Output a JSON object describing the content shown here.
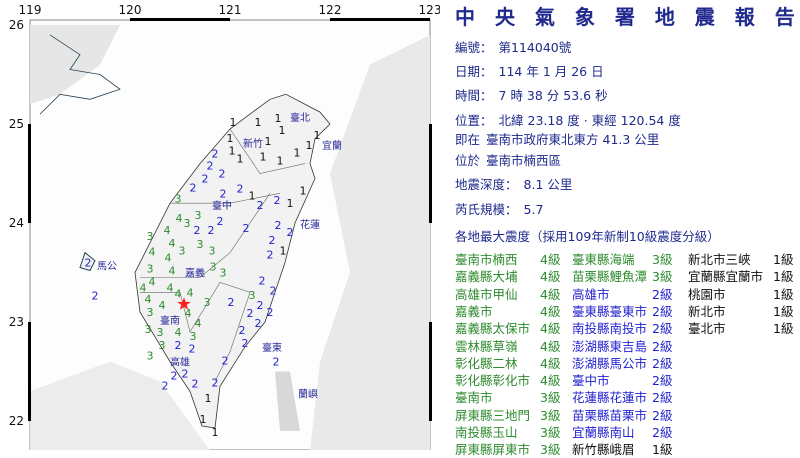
{
  "report": {
    "title": "中 央 氣 象 署 地 震 報 告",
    "number_label": "編號：",
    "number": "第114040號",
    "date_label": "日期：",
    "date": "114 年 1 月 26 日",
    "time_label": "時間：",
    "time": "7 時 38 分 53.6 秒",
    "location_label": "位置：",
    "location": "北緯 23.18 度 · 東經 120.54 度",
    "relative_label": "即在",
    "relative": "臺南市政府東北東方 41.3 公里",
    "district_label": "位於",
    "district": "臺南市楠西區",
    "depth_label": "地震深度：",
    "depth": "8.1 公里",
    "magnitude_label": "芮氏規模：",
    "magnitude": "5.7",
    "intensity_heading": "各地最大震度（採用109年新制10級震度分級）"
  },
  "intensity_colors": {
    "4": "#2e8b2e",
    "3": "#2e8b2e",
    "2": "#2323d0",
    "1": "#111111"
  },
  "intensity_table": [
    [
      [
        "臺南市楠西",
        "4級"
      ],
      [
        "臺東縣海端",
        "3級"
      ],
      [
        "新北市三峽",
        "1級"
      ]
    ],
    [
      [
        "嘉義縣大埔",
        "4級"
      ],
      [
        "苗栗縣鯉魚潭",
        "3級"
      ],
      [
        "宜蘭縣宜蘭市",
        "1級"
      ]
    ],
    [
      [
        "高雄市甲仙",
        "4級"
      ],
      [
        "高雄市",
        "2級"
      ],
      [
        "桃園市",
        "1級"
      ]
    ],
    [
      [
        "嘉義市",
        "4級"
      ],
      [
        "臺東縣臺東市",
        "2級"
      ],
      [
        "新北市",
        "1級"
      ]
    ],
    [
      [
        "嘉義縣太保市",
        "4級"
      ],
      [
        "南投縣南投市",
        "2級"
      ],
      [
        "臺北市",
        "1級"
      ]
    ],
    [
      [
        "雲林縣草嶺",
        "4級"
      ],
      [
        "澎湖縣東吉島",
        "2級"
      ]
    ],
    [
      [
        "彰化縣二林",
        "4級"
      ],
      [
        "澎湖縣馬公市",
        "2級"
      ]
    ],
    [
      [
        "彰化縣彰化市",
        "4級"
      ],
      [
        "臺中市",
        "2級"
      ]
    ],
    [
      [
        "臺南市",
        "3級"
      ],
      [
        "花蓮縣花蓮市",
        "2級"
      ]
    ],
    [
      [
        "屏東縣三地門",
        "3級"
      ],
      [
        "苗栗縣苗栗市",
        "2級"
      ]
    ],
    [
      [
        "南投縣玉山",
        "3級"
      ],
      [
        "宜蘭縣南山",
        "2級"
      ]
    ],
    [
      [
        "屏東縣屏東市",
        "3級"
      ],
      [
        "新竹縣峨眉",
        "1級"
      ]
    ]
  ],
  "map": {
    "lon_ticks": [
      "119",
      "120",
      "121",
      "122",
      "123"
    ],
    "lat_ticks": [
      "26",
      "25",
      "24",
      "23",
      "22"
    ],
    "lon_range": [
      119,
      123
    ],
    "lat_range": [
      21.7,
      26
    ],
    "epicenter": {
      "lon": 120.54,
      "lat": 23.18,
      "color": "#ff2020",
      "icon": "star-icon"
    },
    "cities": [
      {
        "name": "臺北",
        "lon": 121.6,
        "lat": 25.07
      },
      {
        "name": "新竹",
        "lon": 121.13,
        "lat": 24.81
      },
      {
        "name": "宜蘭",
        "lon": 121.92,
        "lat": 24.79
      },
      {
        "name": "臺中",
        "lon": 120.82,
        "lat": 24.18
      },
      {
        "name": "花蓮",
        "lon": 121.7,
        "lat": 23.99
      },
      {
        "name": "馬公",
        "lon": 119.67,
        "lat": 23.57
      },
      {
        "name": "嘉義",
        "lon": 120.55,
        "lat": 23.5
      },
      {
        "name": "臺南",
        "lon": 120.3,
        "lat": 23.02
      },
      {
        "name": "高雄",
        "lon": 120.4,
        "lat": 22.6
      },
      {
        "name": "臺東",
        "lon": 121.32,
        "lat": 22.75
      },
      {
        "name": "蘭嶼",
        "lon": 121.68,
        "lat": 22.28
      }
    ],
    "stations": [
      [
        121.03,
        25.02,
        1
      ],
      [
        121.28,
        25.02,
        1
      ],
      [
        121.48,
        25.06,
        1
      ],
      [
        121.52,
        25.0,
        1
      ],
      [
        121.28,
        24.91,
        1
      ],
      [
        121.0,
        24.86,
        1
      ],
      [
        121.02,
        24.73,
        1
      ],
      [
        121.1,
        24.65,
        1
      ],
      [
        121.33,
        24.67,
        1
      ],
      [
        121.5,
        24.63,
        1
      ],
      [
        121.67,
        24.71,
        1
      ],
      [
        121.74,
        24.79,
        1
      ],
      [
        121.82,
        24.89,
        1
      ],
      [
        121.73,
        24.33,
        1
      ],
      [
        121.6,
        24.2,
        1
      ],
      [
        121.22,
        24.28,
        1
      ],
      [
        121.53,
        23.72,
        1
      ],
      [
        120.78,
        22.23,
        1
      ],
      [
        120.73,
        22.02,
        1
      ],
      [
        120.85,
        21.89,
        1
      ],
      [
        120.85,
        24.7,
        2
      ],
      [
        120.8,
        24.58,
        2
      ],
      [
        120.92,
        24.5,
        2
      ],
      [
        120.75,
        24.45,
        2
      ],
      [
        120.63,
        24.36,
        2
      ],
      [
        120.93,
        24.3,
        2
      ],
      [
        121.15,
        24.35,
        2
      ],
      [
        121.47,
        24.23,
        2
      ],
      [
        121.25,
        24.18,
        2
      ],
      [
        120.9,
        24.08,
        2
      ],
      [
        121.16,
        23.95,
        2
      ],
      [
        120.67,
        23.93,
        2
      ],
      [
        120.86,
        23.93,
        2
      ],
      [
        121.48,
        23.98,
        2
      ],
      [
        121.6,
        23.91,
        2
      ],
      [
        121.42,
        23.83,
        2
      ],
      [
        121.4,
        23.68,
        2
      ],
      [
        121.32,
        23.42,
        2
      ],
      [
        121.3,
        23.17,
        2
      ],
      [
        121.43,
        23.32,
        2
      ],
      [
        121.01,
        23.2,
        2
      ],
      [
        121.2,
        23.09,
        2
      ],
      [
        121.35,
        23.1,
        2
      ],
      [
        121.28,
        22.99,
        2
      ],
      [
        121.12,
        22.92,
        2
      ],
      [
        121.15,
        22.79,
        2
      ],
      [
        121.46,
        22.66,
        2
      ],
      [
        120.95,
        22.61,
        2
      ],
      [
        120.48,
        22.77,
        2
      ],
      [
        120.62,
        22.73,
        2
      ],
      [
        120.55,
        22.48,
        2
      ],
      [
        120.44,
        22.46,
        2
      ],
      [
        120.6,
        22.38,
        2
      ],
      [
        120.35,
        22.36,
        2
      ],
      [
        120.85,
        22.39,
        2
      ],
      [
        119.65,
        23.27,
        2
      ],
      [
        119.58,
        23.6,
        2
      ],
      [
        120.48,
        24.25,
        3
      ],
      [
        120.68,
        24.08,
        3
      ],
      [
        120.57,
        24.0,
        3
      ],
      [
        120.7,
        23.85,
        3
      ],
      [
        120.82,
        23.72,
        3
      ],
      [
        120.52,
        23.72,
        3
      ],
      [
        120.83,
        23.62,
        3
      ],
      [
        120.2,
        23.54,
        3
      ],
      [
        120.93,
        23.5,
        3
      ],
      [
        120.77,
        23.2,
        3
      ],
      [
        121.28,
        23.22,
        3
      ],
      [
        120.2,
        23.1,
        3
      ],
      [
        120.18,
        22.99,
        3
      ],
      [
        120.25,
        22.9,
        3
      ],
      [
        120.32,
        22.77,
        3
      ],
      [
        120.63,
        22.8,
        3
      ],
      [
        120.25,
        22.66,
        3
      ],
      [
        120.2,
        23.87,
        3
      ],
      [
        120.55,
        24.1,
        4
      ],
      [
        120.37,
        23.93,
        4
      ],
      [
        120.22,
        23.65,
        4
      ],
      [
        120.38,
        23.65,
        4
      ],
      [
        120.47,
        23.8,
        4
      ],
      [
        120.22,
        23.47,
        4
      ],
      [
        120.42,
        23.52,
        4
      ],
      [
        120.18,
        23.35,
        4
      ],
      [
        120.4,
        23.35,
        4
      ],
      [
        120.18,
        23.17,
        4
      ],
      [
        120.27,
        23.17,
        4
      ],
      [
        120.48,
        23.29,
        4
      ],
      [
        120.6,
        23.3,
        4
      ],
      [
        120.58,
        23.09,
        4
      ],
      [
        120.63,
        22.99,
        4
      ],
      [
        120.48,
        22.9,
        4
      ]
    ]
  }
}
